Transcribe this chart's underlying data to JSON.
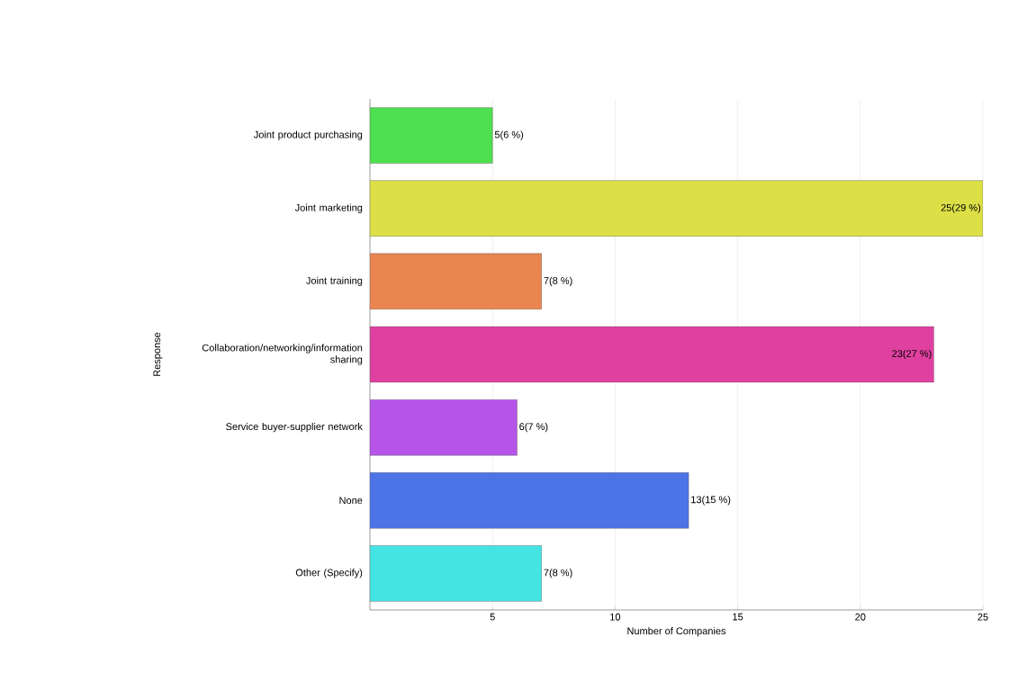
{
  "chart_data": {
    "type": "bar",
    "orientation": "horizontal",
    "xlabel": "Number of Companies",
    "ylabel": "Response",
    "categories": [
      "Joint product purchasing",
      "Joint marketing",
      "Joint training",
      "Collaboration/networking/information sharing",
      "Service buyer-supplier network",
      "None",
      "Other (Specify)"
    ],
    "values": [
      5,
      25,
      7,
      23,
      6,
      13,
      7
    ],
    "colors": [
      "#4ee04e",
      "#dce046",
      "#ea8450",
      "#e040a0",
      "#b654ea",
      "#4c74e6",
      "#44e4e4"
    ],
    "value_labels": [
      "5(6 %)",
      "25(29 %)",
      "7(8 %)",
      "23(27 %)",
      "6(7 %)",
      "13(15 %)",
      "7(8 %)"
    ],
    "xlim": [
      0,
      25
    ],
    "xticks": [
      5,
      10,
      15,
      20,
      25
    ],
    "grid": "x"
  }
}
